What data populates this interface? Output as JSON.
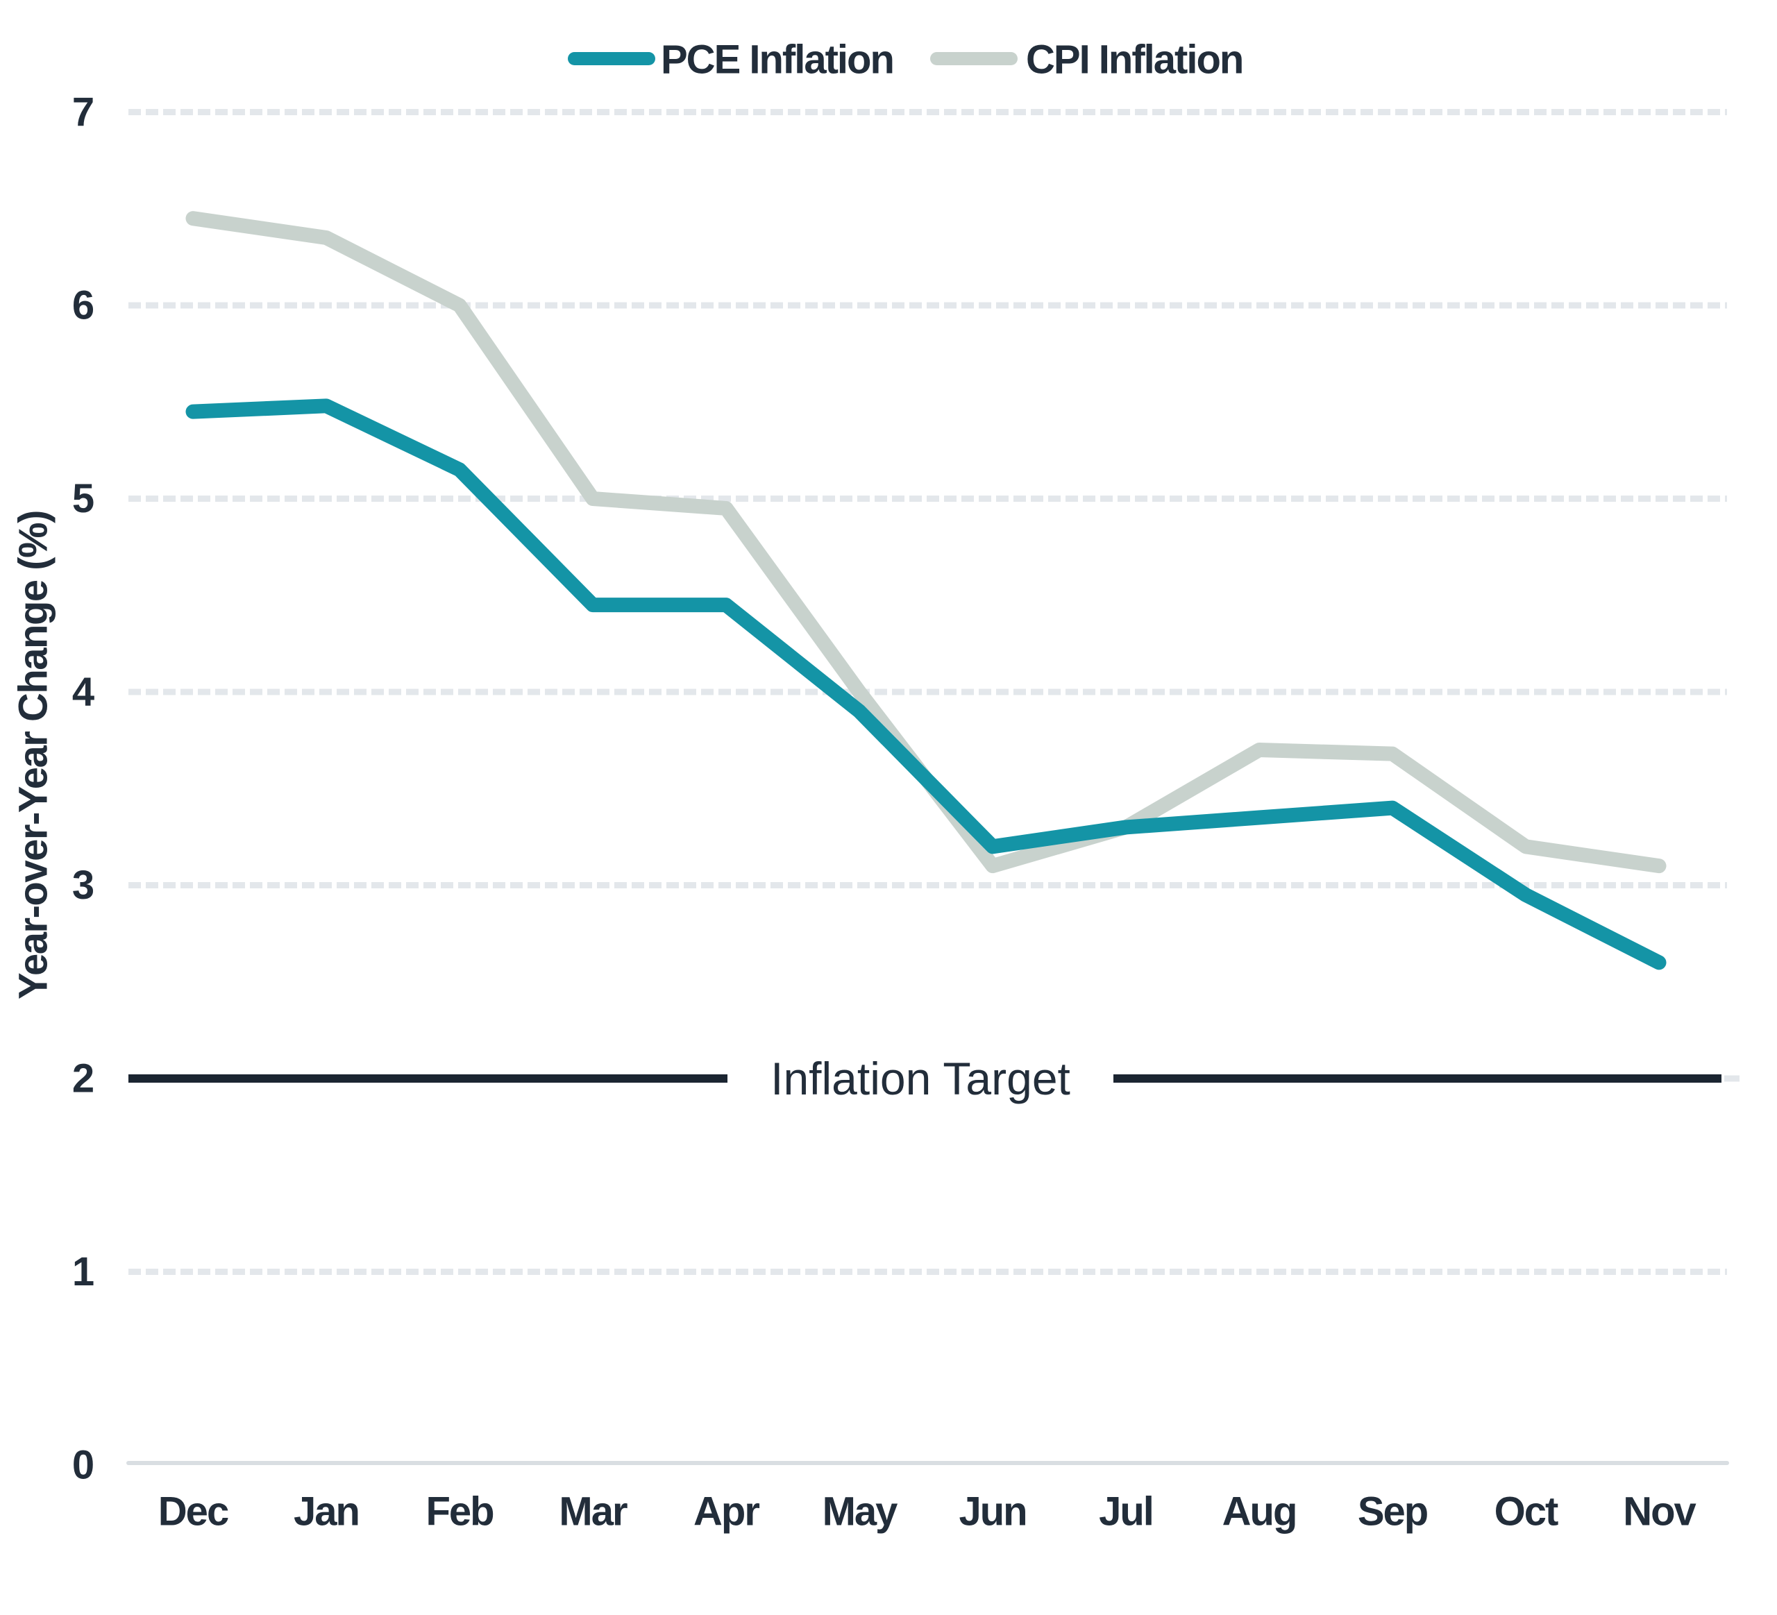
{
  "chart_data": {
    "type": "line",
    "categories": [
      "Dec",
      "Jan",
      "Feb",
      "Mar",
      "Apr",
      "May",
      "Jun",
      "Jul",
      "Aug",
      "Sep",
      "Oct",
      "Nov"
    ],
    "series": [
      {
        "name": "PCE Inflation",
        "color": "#1494A6",
        "values": [
          5.45,
          5.48,
          5.15,
          4.45,
          4.45,
          3.9,
          3.2,
          3.3,
          3.35,
          3.4,
          2.95,
          2.6
        ]
      },
      {
        "name": "CPI Inflation",
        "color": "#C8D2CD",
        "values": [
          6.45,
          6.35,
          6.0,
          5.0,
          4.95,
          4.0,
          3.1,
          3.3,
          3.7,
          3.68,
          3.2,
          3.1
        ]
      }
    ],
    "title": "",
    "xlabel": "",
    "ylabel": "Year-over-Year Change (%)",
    "ylim": [
      0,
      7
    ],
    "yticks": [
      0,
      1,
      2,
      3,
      4,
      5,
      6,
      7
    ],
    "grid": "horizontal dashed",
    "legend_position": "top-center",
    "annotation": {
      "label": "Inflation Target",
      "value": 2
    }
  },
  "colors": {
    "background": "#FFFFFF",
    "pce_line": "#1494A6",
    "cpi_line": "#C8D2CD",
    "text_dark": "#222D3A",
    "target_line": "#1B2531",
    "gridline": "#E3E7EB",
    "axis_line": "#D9DEE2",
    "annotation_bg": "#FFFFFF"
  }
}
